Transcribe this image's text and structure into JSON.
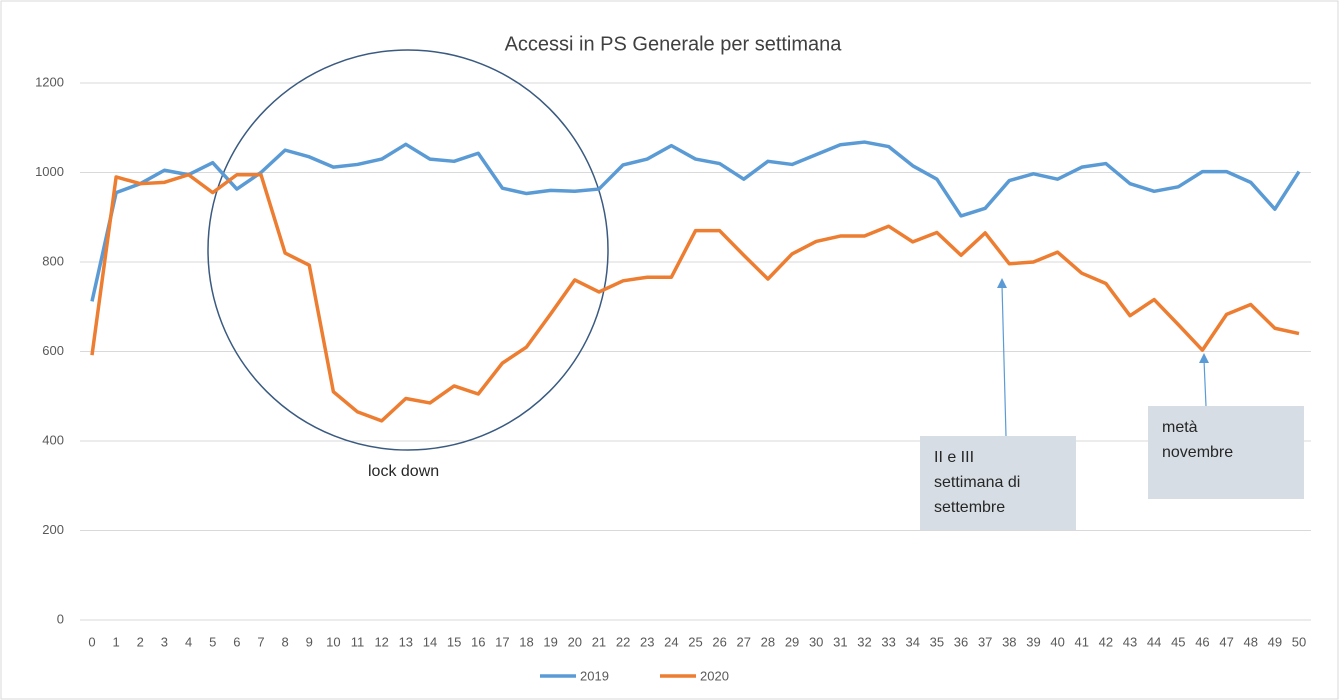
{
  "chart_data": {
    "type": "line",
    "title": "Accessi in PS Generale per settimana",
    "x": [
      0,
      1,
      2,
      3,
      4,
      5,
      6,
      7,
      8,
      9,
      10,
      11,
      12,
      13,
      14,
      15,
      16,
      17,
      18,
      19,
      20,
      21,
      22,
      23,
      24,
      25,
      26,
      27,
      28,
      29,
      30,
      31,
      32,
      33,
      34,
      35,
      36,
      37,
      38,
      39,
      40,
      41,
      42,
      43,
      44,
      45,
      46,
      47,
      48,
      49,
      50
    ],
    "xlim": [
      0,
      50
    ],
    "ylim": [
      0,
      1200
    ],
    "yticks": [
      0,
      200,
      400,
      600,
      800,
      1000,
      1200
    ],
    "grid": true,
    "legend": "bottom",
    "series": [
      {
        "name": "2019",
        "color": "#5b9bd5",
        "values": [
          712,
          955,
          975,
          1005,
          995,
          1022,
          963,
          1000,
          1050,
          1035,
          1012,
          1018,
          1030,
          1063,
          1030,
          1025,
          1043,
          965,
          953,
          960,
          958,
          963,
          1017,
          1030,
          1060,
          1030,
          1020,
          985,
          1025,
          1018,
          1040,
          1062,
          1068,
          1058,
          1015,
          985,
          903,
          920,
          982,
          997,
          985,
          1012,
          1020,
          975,
          958,
          968,
          1002,
          1002,
          978,
          918,
          1002
        ]
      },
      {
        "name": "2020",
        "color": "#ed7d31",
        "values": [
          592,
          990,
          975,
          978,
          995,
          955,
          995,
          995,
          820,
          793,
          510,
          465,
          445,
          495,
          485,
          523,
          505,
          574,
          610,
          684,
          760,
          733,
          758,
          766,
          766,
          870,
          870,
          815,
          762,
          818,
          846,
          858,
          858,
          880,
          845,
          866,
          815,
          865,
          796,
          800,
          822,
          775,
          752,
          680,
          716,
          660,
          603,
          683,
          705,
          652,
          640
        ]
      }
    ],
    "annotations": [
      {
        "lines": [
          "lock down"
        ]
      },
      {
        "lines": [
          "II e III",
          "settimana di",
          "settembre"
        ]
      },
      {
        "lines": [
          "metà",
          "novembre"
        ]
      }
    ]
  }
}
